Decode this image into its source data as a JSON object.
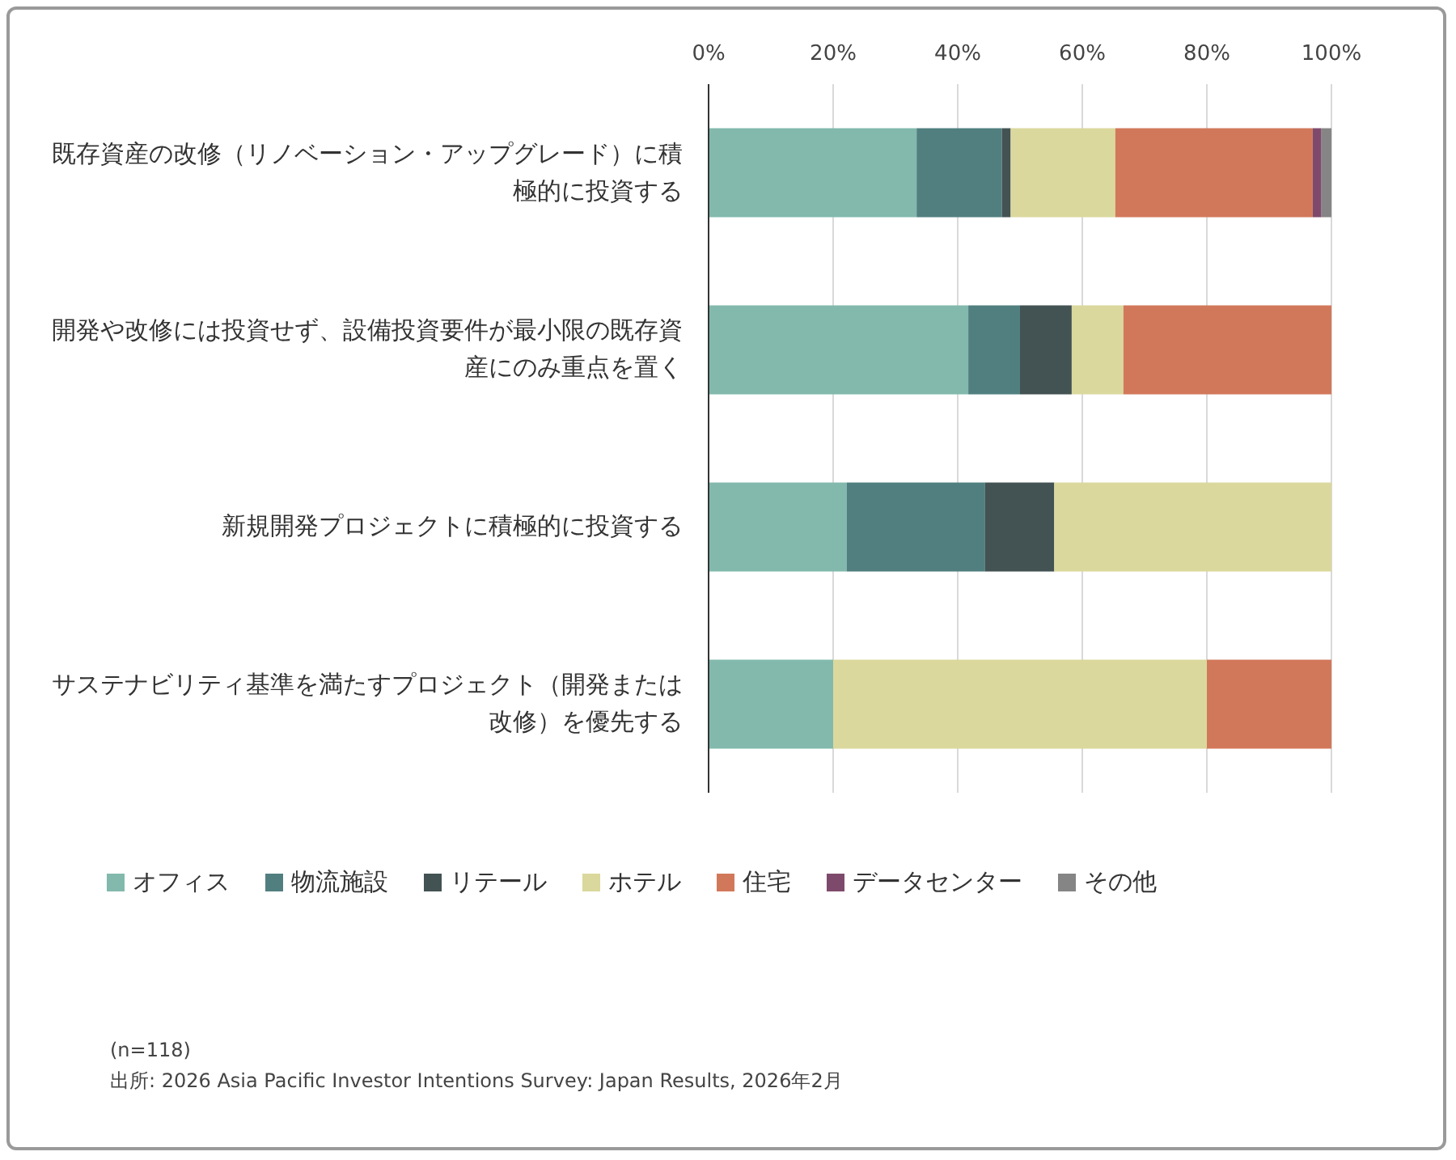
{
  "chart_data": {
    "type": "bar",
    "orientation": "horizontal",
    "stacked": true,
    "categories": [
      "既存資産の改修（リノベーション・アップグレード）に積極的に投資する",
      "開発や改修には投資せず、設備投資要件が最小限の既存資産にのみ重点を置く",
      "新規開発プロジェクトに積極的に投資する",
      "サステナビリティ基準を満たすプロジェクト（開発または改修）を優先する"
    ],
    "series": [
      {
        "name": "オフィス",
        "color": "#82b9ac",
        "values": [
          33.4,
          41.7,
          22.2,
          20
        ]
      },
      {
        "name": "物流施設",
        "color": "#517f80",
        "values": [
          13.7,
          8.3,
          22.2,
          0
        ]
      },
      {
        "name": "リテール",
        "color": "#435252",
        "values": [
          1.4,
          8.3,
          11.1,
          0
        ]
      },
      {
        "name": "ホテル",
        "color": "#dad89c",
        "values": [
          16.8,
          8.3,
          44.5,
          60
        ]
      },
      {
        "name": "住宅",
        "color": "#d2785a",
        "values": [
          31.7,
          33.4,
          0,
          20
        ]
      },
      {
        "name": "データセンター",
        "color": "#7e4a6c",
        "values": [
          1.4,
          0,
          0,
          0
        ]
      },
      {
        "name": "その他",
        "color": "#858585",
        "values": [
          1.6,
          0,
          0,
          0
        ]
      }
    ],
    "xlim": [
      0,
      100
    ],
    "xticks": [
      {
        "value": 0,
        "label": "0%"
      },
      {
        "value": 20,
        "label": "20%"
      },
      {
        "value": 40,
        "label": "40%"
      },
      {
        "value": 60,
        "label": "60%"
      },
      {
        "value": 80,
        "label": "80%"
      },
      {
        "value": 100,
        "label": "100%"
      }
    ],
    "grid": "x",
    "legend": "bottom",
    "annotations": [
      "(n=118)",
      "出所: 2026 Asia Pacific Investor Intentions Survey: Japan Results, 2026年2月"
    ]
  }
}
